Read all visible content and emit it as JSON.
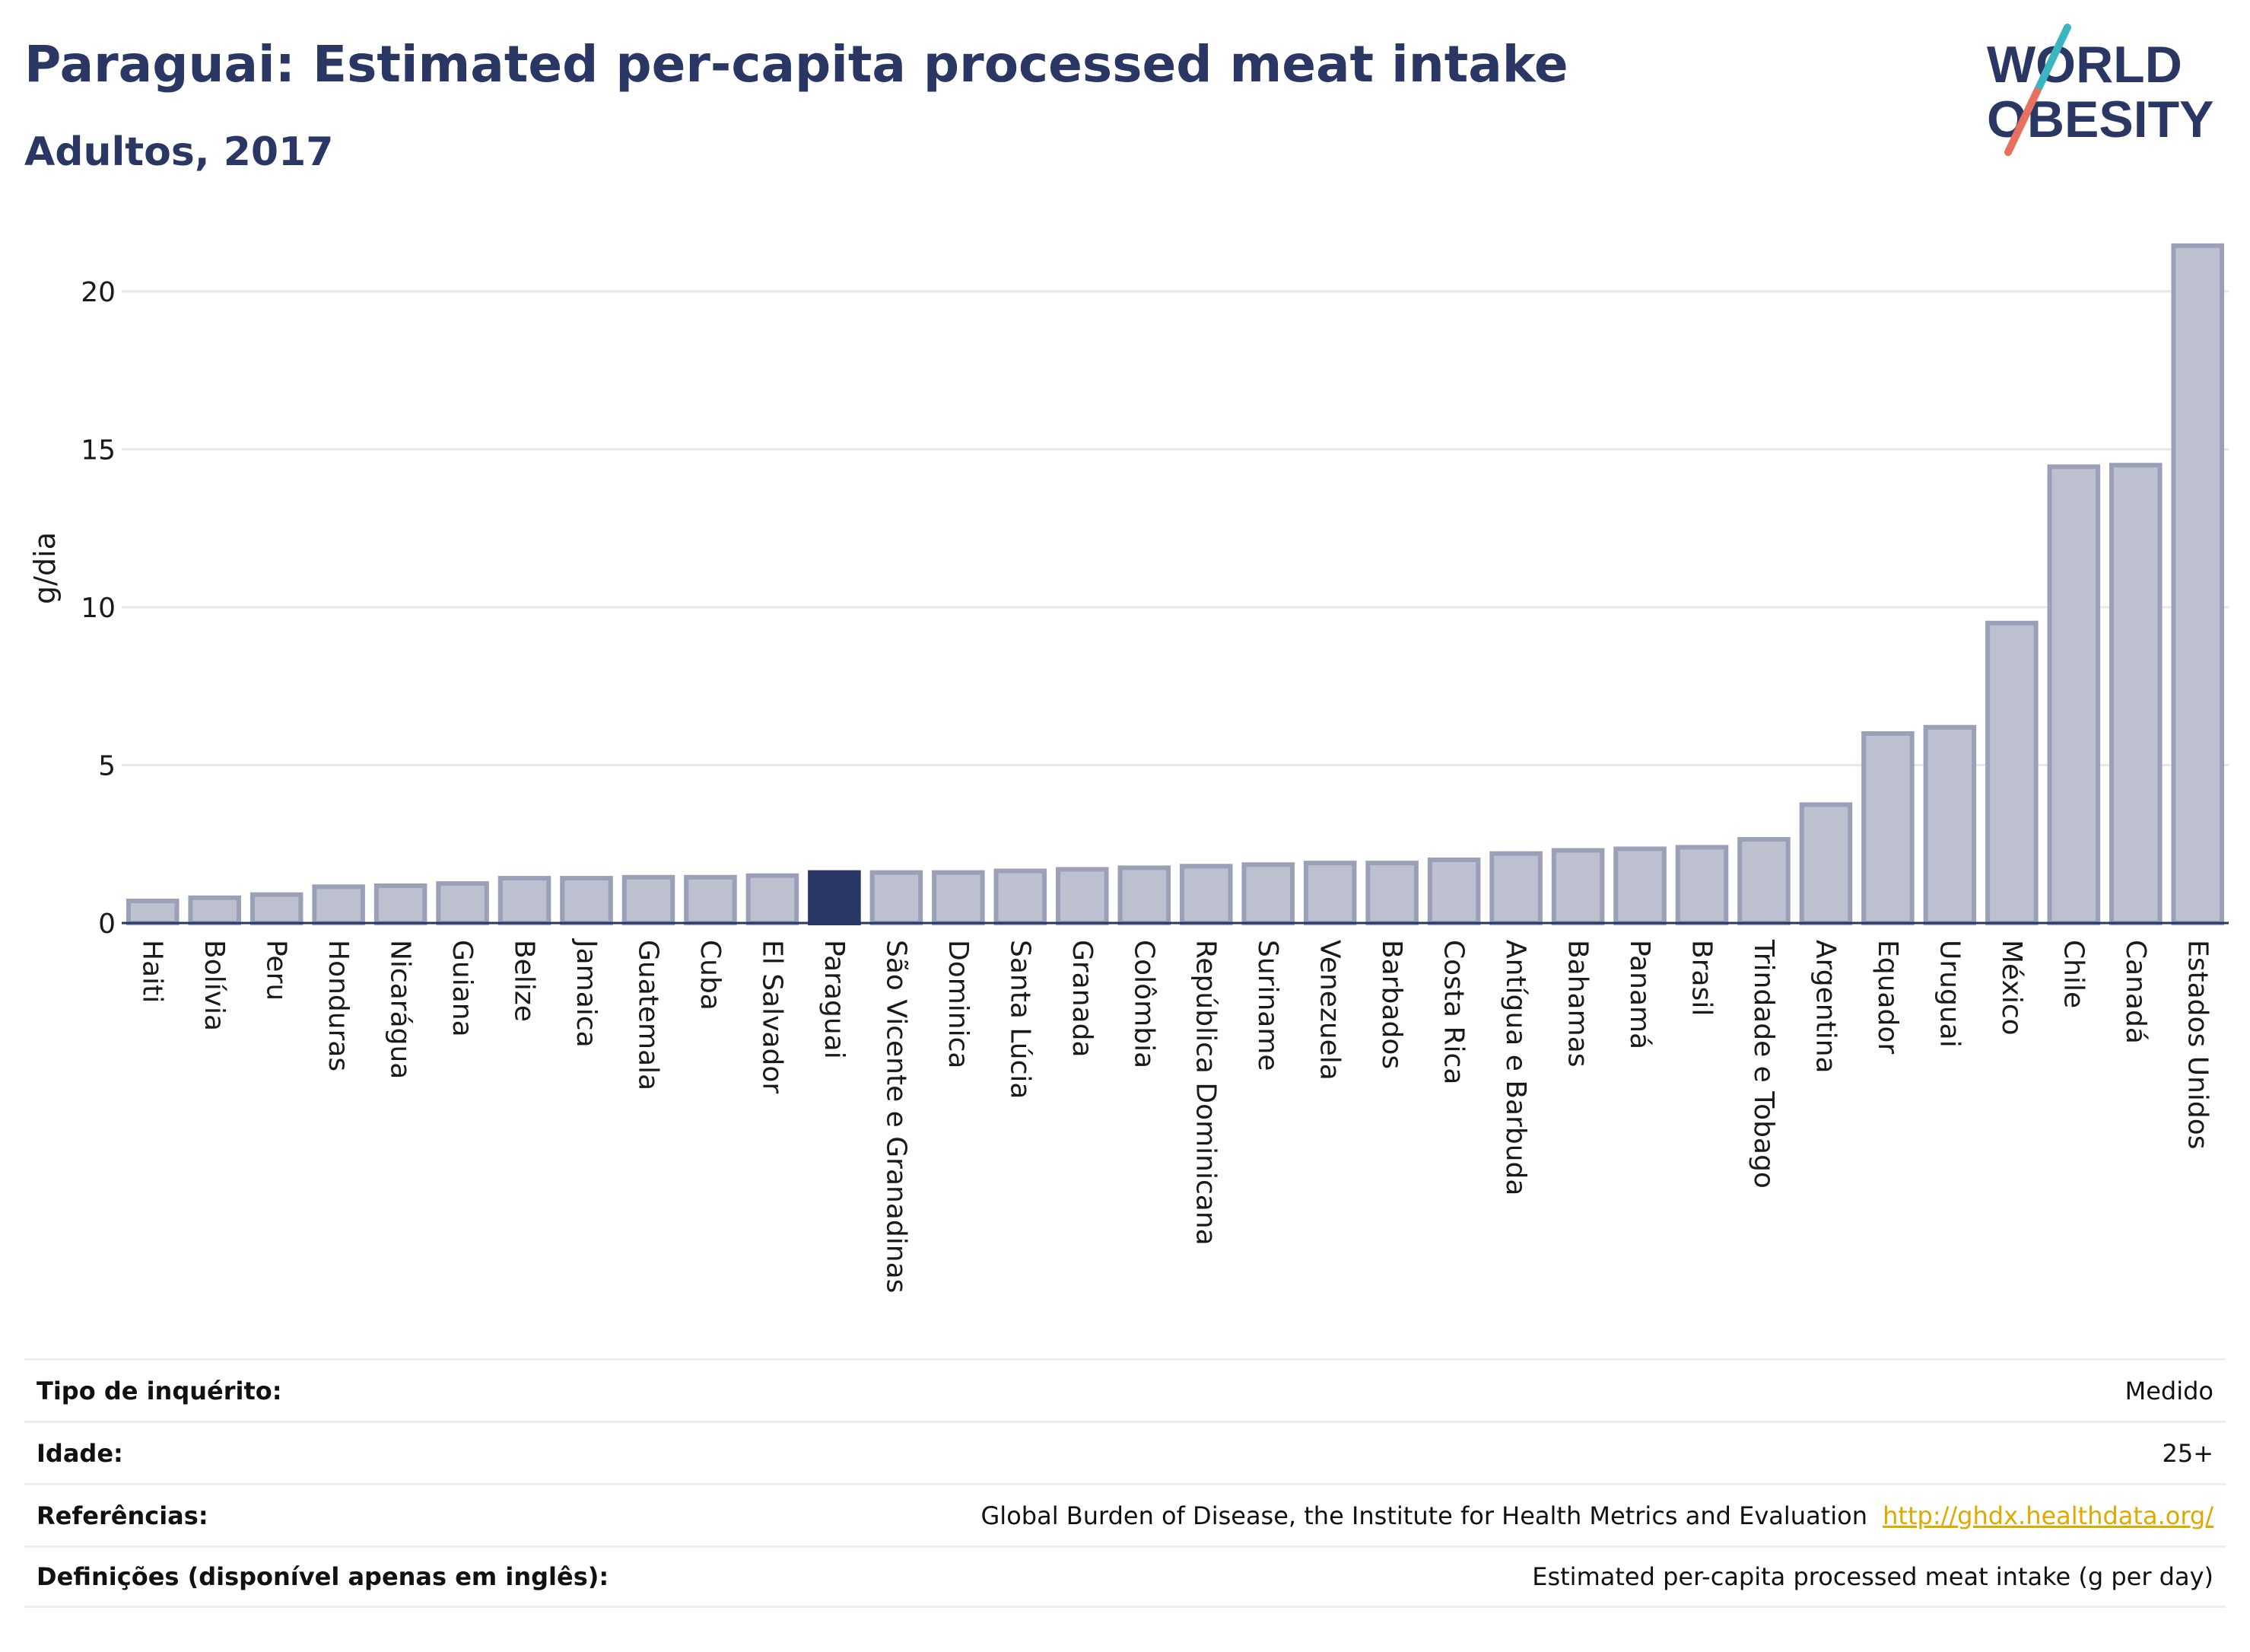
{
  "header": {
    "title": "Paraguai: Estimated per-capita processed meat intake",
    "subtitle": "Adultos, 2017"
  },
  "logo": {
    "line1": "WORLD",
    "line2": "OBESITY",
    "colors": {
      "text": "#2a3663",
      "slash_top": "#3bb6c1",
      "slash_bottom": "#e8705f"
    }
  },
  "chart_data": {
    "type": "bar",
    "ylabel": "g/dia",
    "xlabel": "",
    "ylim": [
      0,
      22
    ],
    "yticks": [
      0,
      5,
      10,
      15,
      20
    ],
    "grid": true,
    "highlight": "Paraguai",
    "colors": {
      "bar": "#bcc0cf",
      "bar_stroke": "#9aa0b8",
      "highlight": "#2a3663"
    },
    "categories": [
      "Haiti",
      "Bolívia",
      "Peru",
      "Honduras",
      "Nicarágua",
      "Guiana",
      "Belize",
      "Jamaica",
      "Guatemala",
      "Cuba",
      "El Salvador",
      "Paraguai",
      "São Vicente e Granadinas",
      "Dominica",
      "Santa Lúcia",
      "Granada",
      "Colômbia",
      "República Dominicana",
      "Suriname",
      "Venezuela",
      "Barbados",
      "Costa Rica",
      "Antígua e Barbuda",
      "Bahamas",
      "Panamá",
      "Brasil",
      "Trindade e Tobago",
      "Argentina",
      "Equador",
      "Uruguai",
      "México",
      "Chile",
      "Canadá",
      "Estados Unidos"
    ],
    "values": [
      0.7,
      0.8,
      0.9,
      1.15,
      1.18,
      1.25,
      1.42,
      1.42,
      1.45,
      1.45,
      1.5,
      1.6,
      1.6,
      1.6,
      1.65,
      1.7,
      1.75,
      1.8,
      1.85,
      1.9,
      1.9,
      2.0,
      2.2,
      2.3,
      2.35,
      2.4,
      2.65,
      3.75,
      6.0,
      6.2,
      9.5,
      14.45,
      14.5,
      21.45
    ]
  },
  "meta": {
    "rows": [
      {
        "key": "Tipo de inquérito:",
        "value": "Medido"
      },
      {
        "key": "Idade:",
        "value": "25+"
      },
      {
        "key": "Referências:",
        "value": "Global Burden of Disease, the Institute for Health Metrics and Evaluation",
        "link": "http://ghdx.healthdata.org/"
      },
      {
        "key": "Definições (disponível apenas em inglês):",
        "value": "Estimated per-capita processed meat intake (g per day)"
      }
    ]
  }
}
